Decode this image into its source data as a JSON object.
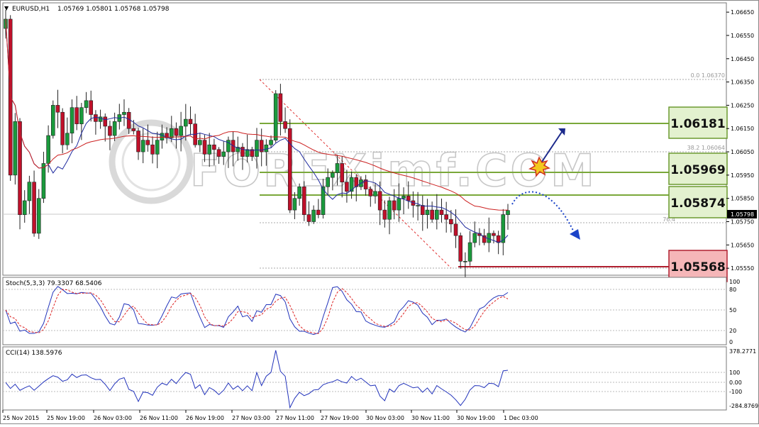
{
  "header": {
    "dropdown_arrow": "▼",
    "symbol": "EURUSD,H1",
    "ohlc": "1.05769 1.05801 1.05768 1.05798"
  },
  "price_axis": {
    "labels": [
      "1.06650",
      "1.06550",
      "1.06450",
      "1.06350",
      "1.06250",
      "1.06150",
      "1.06050",
      "1.05950",
      "1.05850",
      "1.05798",
      "1.05750",
      "1.05650",
      "1.05550"
    ]
  },
  "fib_labels": {
    "level0": "0.0  1.06370",
    "level382": "38.2  1.06064",
    "level764": "76.4"
  },
  "level_boxes": [
    {
      "text": "1.06181",
      "type": "resistance"
    },
    {
      "text": "1.05969",
      "type": "resistance"
    },
    {
      "text": "1.05874",
      "type": "resistance"
    },
    {
      "text": "1.05568",
      "type": "support"
    }
  ],
  "watermark": "FOREXimf.COM",
  "stochastic": {
    "title": "Stoch(5,3,3) 79.3307 68.5406",
    "axis_labels": [
      "100",
      "80",
      "50",
      "20",
      "0"
    ]
  },
  "cci": {
    "title": "CCI(14) 138.5976",
    "axis_labels": [
      "378.2771",
      "100",
      "0.00",
      "-100",
      "-284.8769"
    ]
  },
  "time_axis": {
    "labels": [
      "25 Nov 2015",
      "25 Nov 19:00",
      "26 Nov 03:00",
      "26 Nov 11:00",
      "26 Nov 19:00",
      "27 Nov 03:00",
      "27 Nov 11:00",
      "27 Nov 19:00",
      "30 Nov 03:00",
      "30 Nov 11:00",
      "30 Nov 19:00",
      "1 Dec 03:00"
    ]
  },
  "colors": {
    "bull": "#1a9a3c",
    "bear": "#c0102a",
    "ma_fast": "#1f2a9e",
    "ma_slow": "#cc2020",
    "stoch_main": "#2233bb",
    "stoch_signal": "#dd2222",
    "cci_line": "#2233bb",
    "level_green": "#7aa83a",
    "level_red": "#b02030",
    "arrow": "#1c2a8c"
  },
  "chart_data": {
    "type": "candlestick",
    "symbol": "EURUSD",
    "timeframe": "H1",
    "last_bar": {
      "open": 1.05769,
      "high": 1.05801,
      "low": 1.05768,
      "close": 1.05798
    },
    "y_range": [
      1.0552,
      1.0669
    ],
    "levels": [
      {
        "price": 1.06181,
        "type": "resistance"
      },
      {
        "price": 1.05969,
        "type": "resistance"
      },
      {
        "price": 1.05874,
        "type": "resistance"
      },
      {
        "price": 1.05568,
        "type": "support"
      }
    ],
    "fibonacci": {
      "high": 1.0637,
      "level_38_2": 1.06064
    },
    "closes": [
      1.0662,
      1.0595,
      1.0618,
      1.0578,
      1.0584,
      1.0592,
      1.057,
      1.0585,
      1.06,
      1.0612,
      1.0625,
      1.0622,
      1.0608,
      1.0613,
      1.0624,
      1.0617,
      1.0624,
      1.0627,
      1.0621,
      1.0618,
      1.062,
      1.0616,
      1.0612,
      1.0618,
      1.0621,
      1.0622,
      1.0615,
      1.0614,
      1.0605,
      1.061,
      1.0608,
      1.0604,
      1.061,
      1.0613,
      1.0611,
      1.0615,
      1.0612,
      1.0616,
      1.0619,
      1.0617,
      1.0608,
      1.061,
      1.0604,
      1.0608,
      1.0606,
      1.0603,
      1.0605,
      1.061,
      1.0605,
      1.0607,
      1.0603,
      1.0606,
      1.0603,
      1.061,
      1.0605,
      1.0608,
      1.061,
      1.063,
      1.0618,
      1.0615,
      1.058,
      1.0585,
      1.059,
      1.0578,
      1.0575,
      1.058,
      1.0578,
      1.059,
      1.0594,
      1.0596,
      1.06,
      1.0592,
      1.0588,
      1.0594,
      1.059,
      1.0593,
      1.0589,
      1.0586,
      1.0588,
      1.058,
      1.0576,
      1.0584,
      1.058,
      1.0585,
      1.0586,
      1.0584,
      1.0582,
      1.0582,
      1.0578,
      1.058,
      1.0576,
      1.058,
      1.0578,
      1.0576,
      1.0574,
      1.0569,
      1.0558,
      1.0558,
      1.0566,
      1.057,
      1.0569,
      1.0566,
      1.057,
      1.0569,
      1.0566,
      1.0578,
      1.05798
    ],
    "stochastic": {
      "main": 79.3307,
      "signal": 68.5406,
      "levels": [
        20,
        50,
        80
      ],
      "range": [
        0,
        100
      ]
    },
    "cci": {
      "value": 138.5976,
      "levels": [
        -100,
        0,
        100
      ],
      "range": [
        -284.8769,
        378.2771
      ]
    }
  }
}
